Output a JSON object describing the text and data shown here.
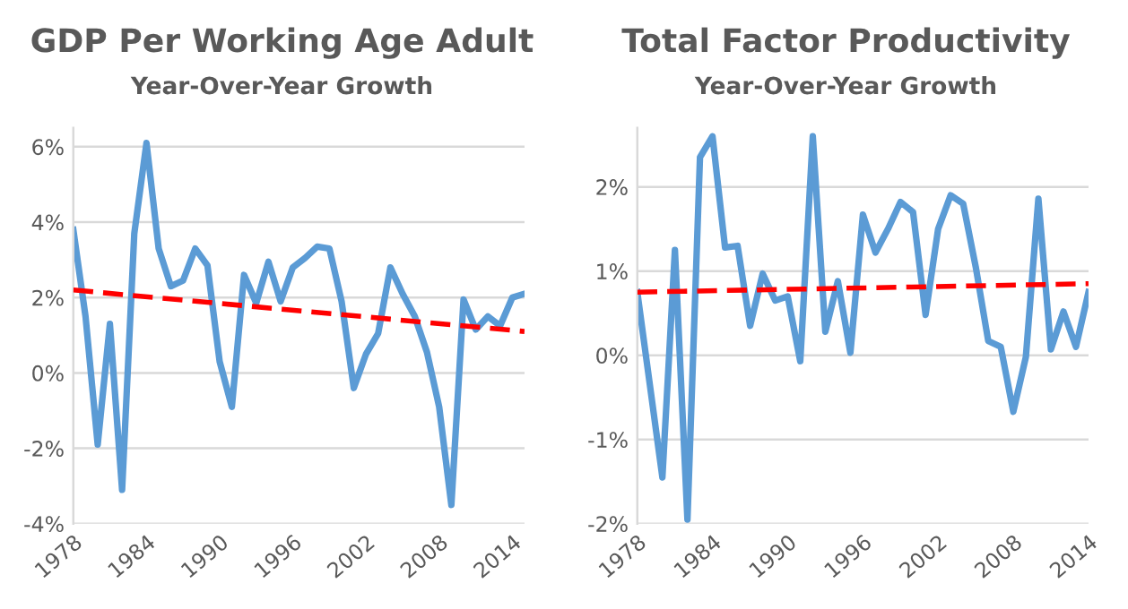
{
  "chart_data": [
    {
      "type": "line",
      "title": "GDP Per Working Age Adult",
      "subtitle": "Year-Over-Year Growth",
      "x": [
        1978,
        1979,
        1980,
        1981,
        1982,
        1983,
        1984,
        1985,
        1986,
        1987,
        1988,
        1989,
        1990,
        1991,
        1992,
        1993,
        1994,
        1995,
        1996,
        1997,
        1998,
        1999,
        2000,
        2001,
        2002,
        2003,
        2004,
        2005,
        2006,
        2007,
        2008,
        2009,
        2010,
        2011,
        2012,
        2013,
        2014,
        2015
      ],
      "series": [
        {
          "color": "#5b9bd5",
          "values": [
            3.8,
            1.5,
            -1.9,
            1.3,
            -3.1,
            3.7,
            6.1,
            3.3,
            2.3,
            2.45,
            3.3,
            2.85,
            0.3,
            -0.9,
            2.6,
            1.85,
            2.95,
            1.9,
            2.8,
            3.05,
            3.35,
            3.3,
            1.9,
            -0.4,
            0.5,
            1.05,
            2.8,
            2.1,
            1.5,
            0.55,
            -0.9,
            -3.5,
            1.95,
            1.15,
            1.5,
            1.25,
            2.0,
            2.1
          ]
        },
        {
          "type": "line",
          "color": "#ff0000",
          "line_style": "dashed",
          "x": [
            1978,
            2015
          ],
          "values": [
            2.2,
            1.1
          ]
        }
      ],
      "xlim": [
        1978,
        2015
      ],
      "xticks": [
        1978,
        1984,
        1990,
        1996,
        2002,
        2008,
        2014
      ],
      "ylim": [
        -4,
        6.5
      ],
      "yticks": [
        {
          "value": -4,
          "label": "-4%"
        },
        {
          "value": -2,
          "label": "-2%"
        },
        {
          "value": 0,
          "label": "0%"
        },
        {
          "value": 2,
          "label": "2%"
        },
        {
          "value": 4,
          "label": "4%"
        },
        {
          "value": 6,
          "label": "6%"
        }
      ],
      "grid": "y",
      "legend": false
    },
    {
      "type": "line",
      "title": "Total Factor Productivity",
      "subtitle": "Year-Over-Year Growth",
      "x": [
        1978,
        1979,
        1980,
        1981,
        1982,
        1983,
        1984,
        1985,
        1986,
        1987,
        1988,
        1989,
        1990,
        1991,
        1992,
        1993,
        1994,
        1995,
        1996,
        1997,
        1998,
        1999,
        2000,
        2001,
        2002,
        2003,
        2004,
        2005,
        2006,
        2007,
        2008,
        2009,
        2010,
        2011,
        2012,
        2013,
        2014
      ],
      "series": [
        {
          "color": "#5b9bd5",
          "values": [
            0.75,
            -0.35,
            -1.45,
            1.25,
            -1.95,
            2.35,
            2.6,
            1.28,
            1.3,
            0.35,
            0.97,
            0.65,
            0.7,
            -0.07,
            2.6,
            0.28,
            0.88,
            0.03,
            1.67,
            1.22,
            1.5,
            1.82,
            1.7,
            0.48,
            1.5,
            1.9,
            1.8,
            1.05,
            0.17,
            0.1,
            -0.67,
            -0.02,
            1.86,
            0.07,
            0.52,
            0.1,
            0.75
          ]
        },
        {
          "type": "line",
          "color": "#ff0000",
          "line_style": "dashed",
          "x": [
            1978,
            2014
          ],
          "values": [
            0.75,
            0.85
          ]
        }
      ],
      "xlim": [
        1978,
        2014
      ],
      "xticks": [
        1978,
        1984,
        1990,
        1996,
        2002,
        2008,
        2014
      ],
      "ylim": [
        -2,
        2.7
      ],
      "yticks": [
        {
          "value": -2,
          "label": "-2%"
        },
        {
          "value": -1,
          "label": "-1%"
        },
        {
          "value": 0,
          "label": "0%"
        },
        {
          "value": 1,
          "label": "1%"
        },
        {
          "value": 2,
          "label": "2%"
        }
      ],
      "grid": "y",
      "legend": false
    }
  ]
}
